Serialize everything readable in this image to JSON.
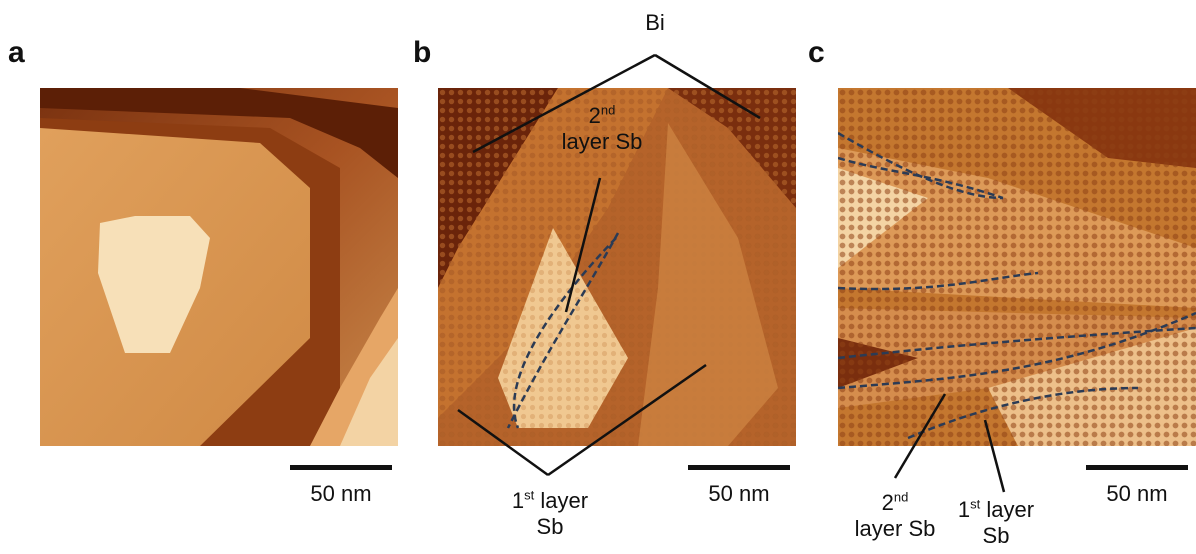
{
  "figure": {
    "panels": [
      {
        "letter": "a",
        "scale_bar": "50 nm"
      },
      {
        "letter": "b",
        "scale_bar": "50 nm"
      },
      {
        "letter": "c",
        "scale_bar": "50 nm"
      }
    ],
    "labels": {
      "bi": "Bi",
      "b_second_num": "2",
      "b_second_sup": "nd",
      "b_second_rest": "layer Sb",
      "b_first_num": "1",
      "b_first_sup": "st",
      "b_first_rest": " layer",
      "b_first_line2": "Sb",
      "c_second_num": "2",
      "c_second_sup": "nd",
      "c_second_rest": "layer Sb",
      "c_first_num": "1",
      "c_first_sup": "st",
      "c_first_rest": " layer",
      "c_first_line2": "Sb"
    },
    "colors": {
      "dark": "#5a1e06",
      "mid": "#b5632a",
      "light": "#e8a866",
      "highlight": "#f7e0b8",
      "outline": "#2b3b55"
    }
  }
}
